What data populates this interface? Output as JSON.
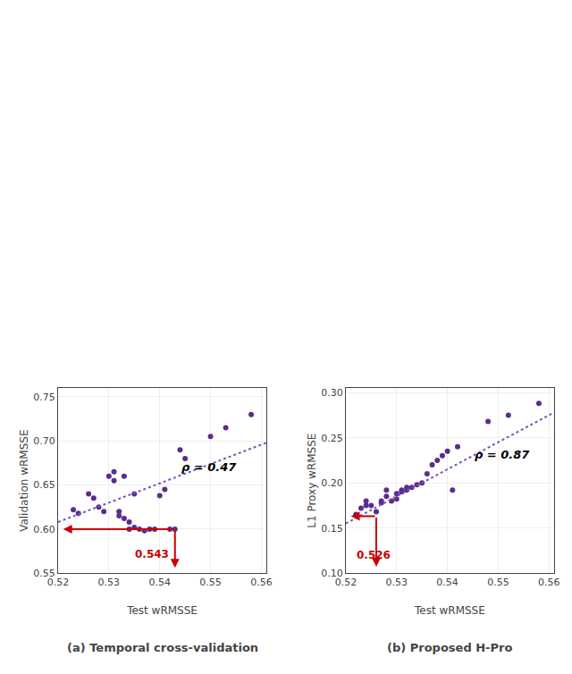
{
  "chart_data": [
    {
      "type": "scatter",
      "title": "(a) Temporal cross-validation",
      "xlabel": "Test wRMSSE",
      "ylabel": "Validation wRMSSE",
      "xlim": [
        0.52,
        0.561
      ],
      "ylim": [
        0.55,
        0.76
      ],
      "xticks": [
        0.52,
        0.53,
        0.54,
        0.55,
        0.56
      ],
      "yticks": [
        0.55,
        {
          "value": 0.6,
          "label": "0.60"
        },
        0.65,
        {
          "value": 0.7,
          "label": "0.70"
        },
        0.75
      ],
      "grid": true,
      "series": [
        {
          "type": "scatter",
          "marker": "circle",
          "color": "#5b2d8e",
          "x": [
            0.523,
            0.524,
            0.526,
            0.527,
            0.528,
            0.529,
            0.53,
            0.531,
            0.531,
            0.532,
            0.532,
            0.533,
            0.533,
            0.534,
            0.534,
            0.535,
            0.535,
            0.536,
            0.537,
            0.538,
            0.539,
            0.54,
            0.541,
            0.542,
            0.543,
            0.544,
            0.545,
            0.55,
            0.553,
            0.558
          ],
          "values": [
            0.622,
            0.618,
            0.64,
            0.635,
            0.625,
            0.62,
            0.66,
            0.655,
            0.665,
            0.62,
            0.615,
            0.612,
            0.66,
            0.608,
            0.6,
            0.602,
            0.64,
            0.6,
            0.598,
            0.6,
            0.6,
            0.638,
            0.645,
            0.6,
            0.6,
            0.69,
            0.68,
            0.705,
            0.715,
            0.73
          ]
        },
        {
          "type": "line",
          "line_style": "dotted",
          "color": "#7755bb",
          "x": [
            0.52,
            0.561
          ],
          "values": [
            0.608,
            0.698
          ]
        }
      ],
      "annotations": [
        {
          "text": "ρ = 0.47",
          "x": 0.544,
          "y": 0.661,
          "color": "#000000"
        },
        {
          "text": "0.543",
          "x": 0.5385,
          "y": 0.562,
          "color": "#cc0000"
        }
      ],
      "arrows": [
        {
          "from": [
            0.543,
            0.6
          ],
          "to": [
            0.543,
            0.556
          ],
          "color": "#cc0000"
        },
        {
          "from": [
            0.543,
            0.6
          ],
          "to": [
            0.521,
            0.6
          ],
          "color": "#cc0000"
        }
      ]
    },
    {
      "type": "scatter",
      "title": "(b) Proposed H-Pro",
      "xlabel": "Test wRMSSE",
      "ylabel": "L1 Proxy wRMSSE",
      "xlim": [
        0.52,
        0.561
      ],
      "ylim": [
        0.1,
        0.305
      ],
      "xticks": [
        0.52,
        0.53,
        0.54,
        0.55,
        0.56
      ],
      "yticks": [
        {
          "value": 0.1,
          "label": "0.10"
        },
        0.15,
        {
          "value": 0.2,
          "label": "0.20"
        },
        0.25,
        {
          "value": 0.3,
          "label": "0.30"
        }
      ],
      "grid": true,
      "series": [
        {
          "type": "scatter",
          "marker": "circle",
          "color": "#5b2d8e",
          "x": [
            0.522,
            0.523,
            0.524,
            0.524,
            0.525,
            0.526,
            0.527,
            0.527,
            0.528,
            0.528,
            0.529,
            0.53,
            0.53,
            0.531,
            0.531,
            0.532,
            0.532,
            0.533,
            0.534,
            0.535,
            0.536,
            0.537,
            0.538,
            0.539,
            0.54,
            0.541,
            0.542,
            0.548,
            0.552,
            0.558
          ],
          "values": [
            0.165,
            0.172,
            0.175,
            0.18,
            0.175,
            0.168,
            0.178,
            0.18,
            0.185,
            0.192,
            0.18,
            0.182,
            0.188,
            0.19,
            0.192,
            0.192,
            0.195,
            0.195,
            0.198,
            0.2,
            0.21,
            0.22,
            0.225,
            0.23,
            0.235,
            0.192,
            0.24,
            0.268,
            0.275,
            0.288
          ]
        },
        {
          "type": "line",
          "line_style": "dotted",
          "color": "#7755bb",
          "x": [
            0.52,
            0.561
          ],
          "values": [
            0.155,
            0.278
          ]
        }
      ],
      "annotations": [
        {
          "text": "ρ = 0.87",
          "x": 0.545,
          "y": 0.222,
          "color": "#000000"
        },
        {
          "text": "0.526",
          "x": 0.5255,
          "y": 0.111,
          "color": "#cc0000"
        }
      ],
      "arrows": [
        {
          "from": [
            0.526,
            0.163
          ],
          "to": [
            0.526,
            0.107
          ],
          "color": "#cc0000"
        },
        {
          "from": [
            0.526,
            0.163
          ],
          "to": [
            0.521,
            0.163
          ],
          "color": "#cc0000"
        }
      ]
    }
  ]
}
